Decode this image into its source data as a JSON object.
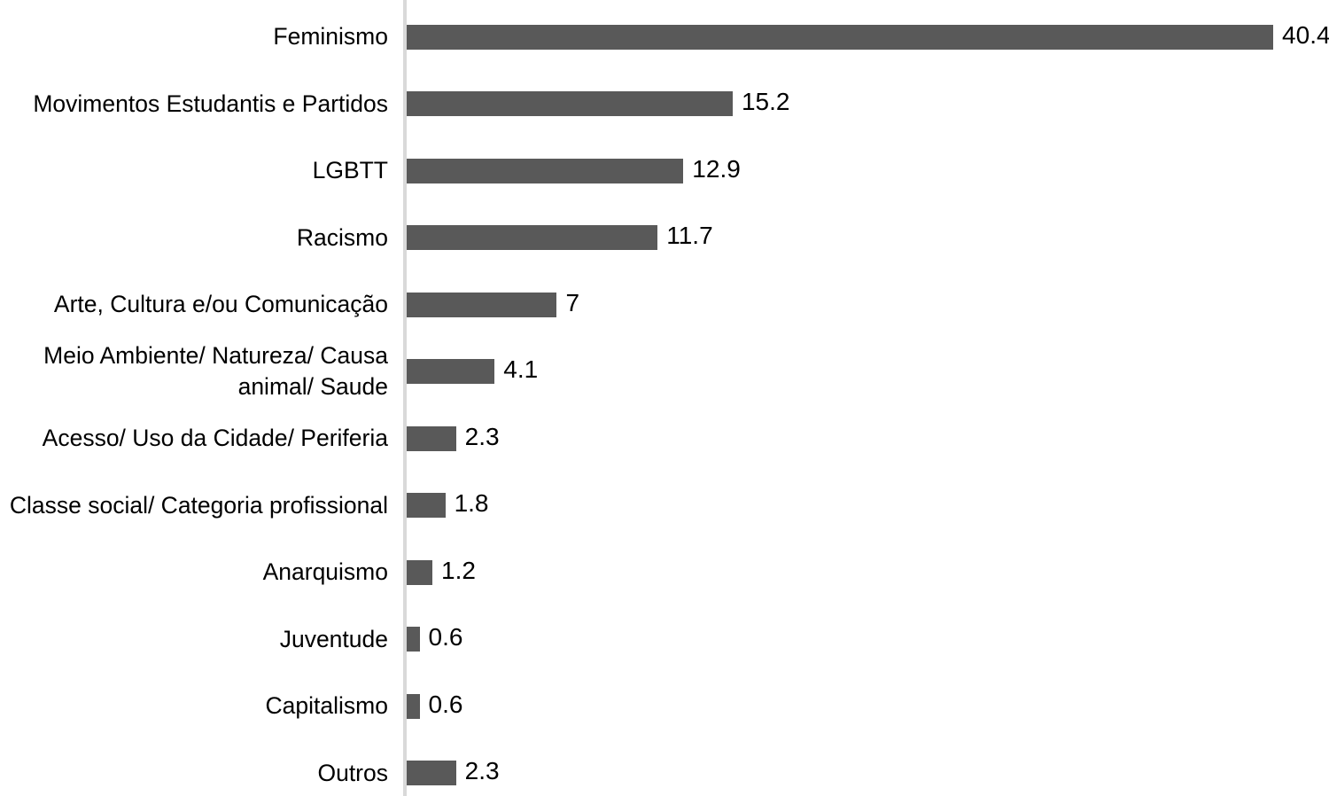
{
  "chart_data": {
    "type": "bar",
    "orientation": "horizontal",
    "title": "",
    "xlabel": "",
    "ylabel": "",
    "grid": false,
    "legend_position": "none",
    "xlim": [
      0,
      43
    ],
    "bar_color": "#595959",
    "axis_line_color": "#d9d9d9",
    "text_color": "#000000",
    "categories": [
      "Feminismo",
      "Movimentos Estudantis e Partidos",
      "LGBTT",
      "Racismo",
      "Arte, Cultura e/ou Comunicação",
      "Meio Ambiente/ Natureza/ Causa animal/ Saude",
      "Acesso/ Uso da Cidade/ Periferia",
      "Classe social/ Categoria profissional",
      "Anarquismo",
      "Juventude",
      "Capitalismo",
      "Outros"
    ],
    "values": [
      40.4,
      15.2,
      12.9,
      11.7,
      7,
      4.1,
      2.3,
      1.8,
      1.2,
      0.6,
      0.6,
      2.3
    ],
    "value_labels": [
      "40.4",
      "15.2",
      "12.9",
      "11.7",
      "7",
      "4.1",
      "2.3",
      "1.8",
      "1.2",
      "0.6",
      "0.6",
      "2.3"
    ]
  }
}
